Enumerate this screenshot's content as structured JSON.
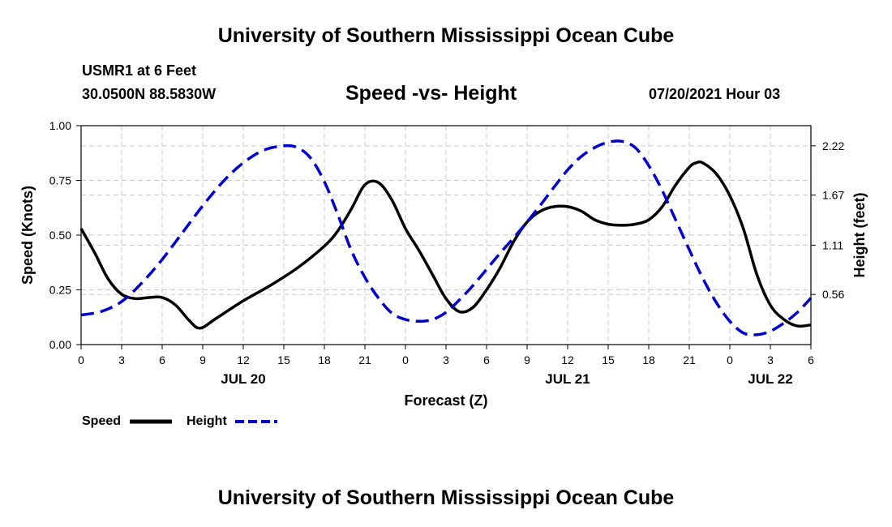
{
  "header": {
    "title_top": "University of Southern Mississippi Ocean Cube",
    "station": "USMR1 at 6 Feet",
    "coordinates": "30.0500N  88.5830W",
    "timestamp": "07/20/2021 Hour 03"
  },
  "footer": {
    "title_bottom": "University of Southern Mississippi Ocean Cube"
  },
  "chart_data": {
    "type": "line",
    "title": "Speed -vs- Height",
    "xlabel": "Forecast (Z)",
    "ylabel_left": "Speed (Knots)",
    "ylabel_right": "Height (feet)",
    "x_range_hours": [
      0,
      54
    ],
    "x_ticks": [
      {
        "hour": 0,
        "label": "0"
      },
      {
        "hour": 3,
        "label": "3"
      },
      {
        "hour": 6,
        "label": "6"
      },
      {
        "hour": 9,
        "label": "9"
      },
      {
        "hour": 12,
        "label": "12"
      },
      {
        "hour": 15,
        "label": "15"
      },
      {
        "hour": 18,
        "label": "18"
      },
      {
        "hour": 21,
        "label": "21"
      },
      {
        "hour": 24,
        "label": "0"
      },
      {
        "hour": 27,
        "label": "3"
      },
      {
        "hour": 30,
        "label": "6"
      },
      {
        "hour": 33,
        "label": "9"
      },
      {
        "hour": 36,
        "label": "12"
      },
      {
        "hour": 39,
        "label": "15"
      },
      {
        "hour": 42,
        "label": "18"
      },
      {
        "hour": 45,
        "label": "21"
      },
      {
        "hour": 48,
        "label": "0"
      },
      {
        "hour": 51,
        "label": "3"
      },
      {
        "hour": 54,
        "label": "6"
      }
    ],
    "date_labels": [
      {
        "hour": 12,
        "label": "JUL 20"
      },
      {
        "hour": 36,
        "label": "JUL 21"
      },
      {
        "hour": 51,
        "label": "JUL 22"
      }
    ],
    "ylim_left": [
      0,
      1.0
    ],
    "y_ticks_left": [
      {
        "value": 0.0,
        "label": "0.00"
      },
      {
        "value": 0.25,
        "label": "0.25"
      },
      {
        "value": 0.5,
        "label": "0.50"
      },
      {
        "value": 0.75,
        "label": "0.75"
      },
      {
        "value": 1.0,
        "label": "1.00"
      }
    ],
    "ylim_right": [
      0.0,
      2.445
    ],
    "y_ticks_right": [
      {
        "value": 0.56,
        "label": "0.56"
      },
      {
        "value": 1.11,
        "label": "1.11"
      },
      {
        "value": 1.67,
        "label": "1.67"
      },
      {
        "value": 2.22,
        "label": "2.22"
      }
    ],
    "grid": true,
    "legend_placement": "bottom-left",
    "series": [
      {
        "name": "Speed",
        "axis": "left",
        "color": "#000000",
        "dash": "solid",
        "x": [
          0,
          1,
          2,
          3,
          4,
          5,
          6,
          7,
          8,
          8.8,
          10,
          12,
          14,
          16,
          18,
          19,
          20,
          21,
          22,
          23,
          24,
          25,
          26,
          27,
          28,
          29,
          30,
          31,
          32,
          33,
          34,
          35,
          36,
          37,
          38,
          39,
          40,
          41,
          42,
          43,
          44,
          45,
          45.5,
          46,
          47,
          48,
          49,
          50,
          51,
          52,
          53,
          54
        ],
        "values": [
          0.53,
          0.42,
          0.3,
          0.23,
          0.21,
          0.215,
          0.215,
          0.18,
          0.11,
          0.075,
          0.12,
          0.2,
          0.27,
          0.35,
          0.45,
          0.52,
          0.62,
          0.73,
          0.74,
          0.66,
          0.53,
          0.43,
          0.32,
          0.21,
          0.15,
          0.17,
          0.25,
          0.35,
          0.47,
          0.56,
          0.61,
          0.63,
          0.63,
          0.61,
          0.57,
          0.55,
          0.545,
          0.55,
          0.57,
          0.63,
          0.73,
          0.81,
          0.83,
          0.83,
          0.78,
          0.68,
          0.53,
          0.32,
          0.18,
          0.115,
          0.085,
          0.09
        ]
      },
      {
        "name": "Height",
        "axis": "right",
        "color": "#0000cc",
        "dash": "dashed",
        "x": [
          0,
          1.5,
          3,
          4.5,
          6,
          7.5,
          9,
          10.5,
          12,
          13.5,
          15,
          16,
          17,
          18,
          19,
          20,
          21,
          22,
          23,
          24,
          25,
          26,
          27,
          28,
          29,
          30,
          31,
          32,
          33,
          34,
          35,
          36,
          37,
          38,
          39,
          40,
          41,
          42,
          43,
          44,
          45,
          46,
          47,
          48,
          49,
          50,
          51,
          52,
          53,
          54
        ],
        "values": [
          0.33,
          0.37,
          0.48,
          0.69,
          0.95,
          1.25,
          1.55,
          1.82,
          2.03,
          2.17,
          2.22,
          2.2,
          2.08,
          1.82,
          1.45,
          1.05,
          0.75,
          0.52,
          0.35,
          0.28,
          0.26,
          0.28,
          0.36,
          0.5,
          0.66,
          0.84,
          1.02,
          1.19,
          1.37,
          1.56,
          1.76,
          1.95,
          2.1,
          2.2,
          2.26,
          2.27,
          2.2,
          2.0,
          1.72,
          1.39,
          1.06,
          0.74,
          0.47,
          0.26,
          0.13,
          0.11,
          0.15,
          0.24,
          0.36,
          0.52
        ]
      }
    ]
  }
}
